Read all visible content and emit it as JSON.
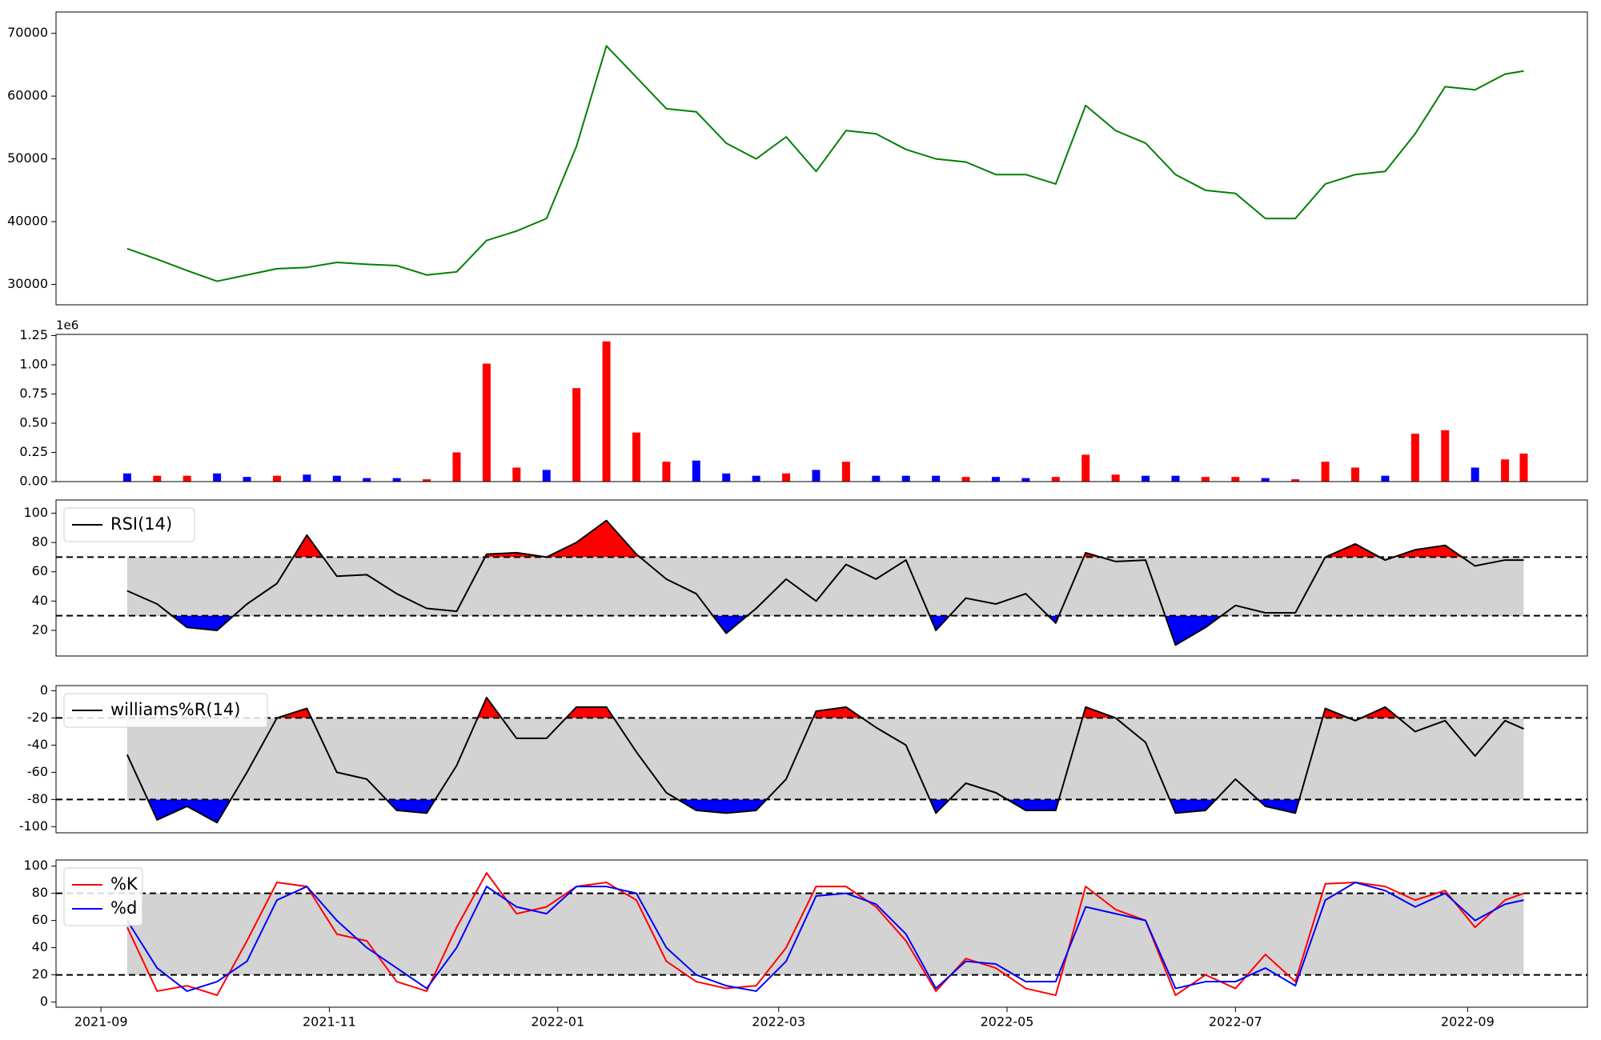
{
  "chart_data": [
    {
      "type": "line",
      "color": "green",
      "x": [
        "2021-09-08",
        "2021-09-16",
        "2021-09-24",
        "2021-10-02",
        "2021-10-10",
        "2021-10-18",
        "2021-10-26",
        "2021-11-03",
        "2021-11-11",
        "2021-11-19",
        "2021-11-27",
        "2021-12-05",
        "2021-12-13",
        "2021-12-21",
        "2021-12-29",
        "2022-01-06",
        "2022-01-14",
        "2022-01-22",
        "2022-01-30",
        "2022-02-07",
        "2022-02-15",
        "2022-02-23",
        "2022-03-03",
        "2022-03-11",
        "2022-03-19",
        "2022-03-27",
        "2022-04-04",
        "2022-04-12",
        "2022-04-20",
        "2022-04-28",
        "2022-05-06",
        "2022-05-14",
        "2022-05-22",
        "2022-05-30",
        "2022-06-07",
        "2022-06-15",
        "2022-06-23",
        "2022-07-01",
        "2022-07-09",
        "2022-07-17",
        "2022-07-25",
        "2022-08-02",
        "2022-08-10",
        "2022-08-18",
        "2022-08-26",
        "2022-09-03",
        "2022-09-11",
        "2022-09-16"
      ],
      "values": [
        35700,
        34000,
        32200,
        30500,
        31500,
        32500,
        32700,
        33500,
        33200,
        33000,
        31500,
        32000,
        37000,
        38500,
        40500,
        52000,
        68000,
        63000,
        58000,
        57500,
        52500,
        50000,
        53500,
        48000,
        54500,
        54000,
        51500,
        50000,
        49500,
        47500,
        47500,
        46000,
        58500,
        54500,
        52500,
        47500,
        45000,
        44500,
        40500,
        40500,
        46000,
        47500,
        48000,
        54000,
        61500,
        61000,
        63500,
        64000
      ],
      "xlim": [
        "2021-08-20",
        "2022-10-03"
      ],
      "ylim": [
        26750,
        73400
      ],
      "yticks": [
        30000,
        40000,
        50000,
        60000,
        70000
      ]
    },
    {
      "type": "bar",
      "offset_label": "1e6",
      "x": [
        "2021-09-08",
        "2021-09-16",
        "2021-09-24",
        "2021-10-02",
        "2021-10-10",
        "2021-10-18",
        "2021-10-26",
        "2021-11-03",
        "2021-11-11",
        "2021-11-19",
        "2021-11-27",
        "2021-12-05",
        "2021-12-13",
        "2021-12-21",
        "2021-12-29",
        "2022-01-06",
        "2022-01-14",
        "2022-01-22",
        "2022-01-30",
        "2022-02-07",
        "2022-02-15",
        "2022-02-23",
        "2022-03-03",
        "2022-03-11",
        "2022-03-19",
        "2022-03-27",
        "2022-04-04",
        "2022-04-12",
        "2022-04-20",
        "2022-04-28",
        "2022-05-06",
        "2022-05-14",
        "2022-05-22",
        "2022-05-30",
        "2022-06-07",
        "2022-06-15",
        "2022-06-23",
        "2022-07-01",
        "2022-07-09",
        "2022-07-17",
        "2022-07-25",
        "2022-08-02",
        "2022-08-10",
        "2022-08-18",
        "2022-08-26",
        "2022-09-03",
        "2022-09-11",
        "2022-09-16"
      ],
      "values": [
        0.07,
        0.05,
        0.05,
        0.07,
        0.04,
        0.05,
        0.06,
        0.05,
        0.03,
        0.03,
        0.02,
        0.25,
        1.01,
        0.12,
        0.1,
        0.8,
        1.2,
        0.42,
        0.17,
        0.18,
        0.07,
        0.05,
        0.07,
        0.1,
        0.17,
        0.05,
        0.05,
        0.05,
        0.04,
        0.04,
        0.03,
        0.04,
        0.23,
        0.06,
        0.05,
        0.05,
        0.04,
        0.04,
        0.03,
        0.02,
        0.17,
        0.12,
        0.05,
        0.41,
        0.44,
        0.12,
        0.19,
        0.24
      ],
      "colors": [
        "blue",
        "red",
        "red",
        "blue",
        "blue",
        "red",
        "blue",
        "blue",
        "blue",
        "blue",
        "red",
        "red",
        "red",
        "red",
        "blue",
        "red",
        "red",
        "red",
        "red",
        "blue",
        "blue",
        "blue",
        "red",
        "blue",
        "red",
        "blue",
        "blue",
        "blue",
        "red",
        "blue",
        "blue",
        "red",
        "red",
        "red",
        "blue",
        "blue",
        "red",
        "red",
        "blue",
        "red",
        "red",
        "red",
        "blue",
        "red",
        "red",
        "blue",
        "red",
        "red"
      ],
      "xlim": [
        "2021-08-20",
        "2022-10-03"
      ],
      "ylim": [
        0,
        1.26
      ],
      "yticks": [
        {
          "value": 0,
          "label": "0.00"
        },
        {
          "value": 0.25,
          "label": "0.25"
        },
        {
          "value": 0.5,
          "label": "0.50"
        },
        {
          "value": 0.75,
          "label": "0.75"
        },
        {
          "value": 1,
          "label": "1.00"
        },
        {
          "value": 1.25,
          "label": "1.25"
        }
      ]
    },
    {
      "type": "line",
      "legend": "upper left",
      "hlines": [
        30,
        70
      ],
      "band_color": "lightgray",
      "above_color": "red",
      "below_color": "blue",
      "x": [
        "2021-09-08",
        "2021-09-16",
        "2021-09-24",
        "2021-10-02",
        "2021-10-10",
        "2021-10-18",
        "2021-10-26",
        "2021-11-03",
        "2021-11-11",
        "2021-11-19",
        "2021-11-27",
        "2021-12-05",
        "2021-12-13",
        "2021-12-21",
        "2021-12-29",
        "2022-01-06",
        "2022-01-14",
        "2022-01-22",
        "2022-01-30",
        "2022-02-07",
        "2022-02-15",
        "2022-02-23",
        "2022-03-03",
        "2022-03-11",
        "2022-03-19",
        "2022-03-27",
        "2022-04-04",
        "2022-04-12",
        "2022-04-20",
        "2022-04-28",
        "2022-05-06",
        "2022-05-14",
        "2022-05-22",
        "2022-05-30",
        "2022-06-07",
        "2022-06-15",
        "2022-06-23",
        "2022-07-01",
        "2022-07-09",
        "2022-07-17",
        "2022-07-25",
        "2022-08-02",
        "2022-08-10",
        "2022-08-18",
        "2022-08-26",
        "2022-09-03",
        "2022-09-11",
        "2022-09-16"
      ],
      "series": [
        {
          "name": "RSI(14)",
          "color": "black",
          "values": [
            47,
            38,
            22,
            20,
            38,
            52,
            85,
            57,
            58,
            45,
            35,
            33,
            72,
            73,
            70,
            80,
            95,
            72,
            55,
            45,
            18,
            35,
            55,
            40,
            65,
            55,
            68,
            20,
            42,
            38,
            45,
            25,
            73,
            67,
            68,
            10,
            22,
            37,
            32,
            32,
            70,
            79,
            68,
            75,
            78,
            64,
            68,
            68
          ]
        }
      ],
      "xlim": [
        "2021-08-20",
        "2022-10-03"
      ],
      "ylim": [
        2.5,
        109
      ],
      "yticks": [
        20,
        40,
        60,
        80,
        100
      ]
    },
    {
      "type": "line",
      "legend": "upper left",
      "hlines": [
        -80,
        -20
      ],
      "band_color": "lightgray",
      "above_color": "red",
      "below_color": "blue",
      "x": [
        "2021-09-08",
        "2021-09-16",
        "2021-09-24",
        "2021-10-02",
        "2021-10-10",
        "2021-10-18",
        "2021-10-26",
        "2021-11-03",
        "2021-11-11",
        "2021-11-19",
        "2021-11-27",
        "2021-12-05",
        "2021-12-13",
        "2021-12-21",
        "2021-12-29",
        "2022-01-06",
        "2022-01-14",
        "2022-01-22",
        "2022-01-30",
        "2022-02-07",
        "2022-02-15",
        "2022-02-23",
        "2022-03-03",
        "2022-03-11",
        "2022-03-19",
        "2022-03-27",
        "2022-04-04",
        "2022-04-12",
        "2022-04-20",
        "2022-04-28",
        "2022-05-06",
        "2022-05-14",
        "2022-05-22",
        "2022-05-30",
        "2022-06-07",
        "2022-06-15",
        "2022-06-23",
        "2022-07-01",
        "2022-07-09",
        "2022-07-17",
        "2022-07-25",
        "2022-08-02",
        "2022-08-10",
        "2022-08-18",
        "2022-08-26",
        "2022-09-03",
        "2022-09-11",
        "2022-09-16"
      ],
      "series": [
        {
          "name": "williams%R(14)",
          "color": "black",
          "values": [
            -47,
            -95,
            -85,
            -97,
            -60,
            -20,
            -13,
            -60,
            -65,
            -88,
            -90,
            -55,
            -5,
            -35,
            -35,
            -12,
            -12,
            -45,
            -75,
            -88,
            -90,
            -88,
            -65,
            -15,
            -12,
            -27,
            -40,
            -90,
            -68,
            -75,
            -88,
            -88,
            -12,
            -20,
            -38,
            -90,
            -88,
            -65,
            -85,
            -90,
            -13,
            -22,
            -12,
            -30,
            -22,
            -48,
            -22,
            -28
          ]
        }
      ],
      "xlim": [
        "2021-08-20",
        "2022-10-03"
      ],
      "ylim": [
        -104.5,
        3.8
      ],
      "yticks": [
        -100,
        -80,
        -60,
        -40,
        -20,
        0
      ]
    },
    {
      "type": "line",
      "legend": "upper left",
      "hlines": [
        20,
        80
      ],
      "band_color": "lightgray",
      "x": [
        "2021-09-08",
        "2021-09-16",
        "2021-09-24",
        "2021-10-02",
        "2021-10-10",
        "2021-10-18",
        "2021-10-26",
        "2021-11-03",
        "2021-11-11",
        "2021-11-19",
        "2021-11-27",
        "2021-12-05",
        "2021-12-13",
        "2021-12-21",
        "2021-12-29",
        "2022-01-06",
        "2022-01-14",
        "2022-01-22",
        "2022-01-30",
        "2022-02-07",
        "2022-02-15",
        "2022-02-23",
        "2022-03-03",
        "2022-03-11",
        "2022-03-19",
        "2022-03-27",
        "2022-04-04",
        "2022-04-12",
        "2022-04-20",
        "2022-04-28",
        "2022-05-06",
        "2022-05-14",
        "2022-05-22",
        "2022-05-30",
        "2022-06-07",
        "2022-06-15",
        "2022-06-23",
        "2022-07-01",
        "2022-07-09",
        "2022-07-17",
        "2022-07-25",
        "2022-08-02",
        "2022-08-10",
        "2022-08-18",
        "2022-08-26",
        "2022-09-03",
        "2022-09-11",
        "2022-09-16"
      ],
      "series": [
        {
          "name": "%K",
          "color": "red",
          "values": [
            55,
            8,
            12,
            5,
            45,
            88,
            85,
            50,
            45,
            15,
            8,
            55,
            95,
            65,
            70,
            85,
            88,
            75,
            30,
            15,
            10,
            12,
            40,
            85,
            85,
            70,
            45,
            8,
            32,
            25,
            10,
            5,
            85,
            68,
            60,
            5,
            20,
            10,
            35,
            15,
            87,
            88,
            85,
            75,
            82,
            55,
            75,
            80
          ]
        },
        {
          "name": "%d",
          "color": "blue",
          "values": [
            60,
            25,
            8,
            15,
            30,
            75,
            85,
            60,
            40,
            25,
            10,
            40,
            85,
            70,
            65,
            85,
            85,
            80,
            40,
            20,
            12,
            8,
            30,
            78,
            80,
            72,
            50,
            10,
            30,
            28,
            15,
            15,
            70,
            65,
            60,
            10,
            15,
            15,
            25,
            12,
            75,
            88,
            82,
            70,
            80,
            60,
            72,
            75
          ]
        }
      ],
      "xlim": [
        "2021-08-20",
        "2022-10-03"
      ],
      "ylim": [
        -3.8,
        104.5
      ],
      "yticks": [
        0,
        20,
        40,
        60,
        80,
        100
      ],
      "xticks": [
        {
          "value": "2021-09-01",
          "label": "2021-09"
        },
        {
          "value": "2021-11-01",
          "label": "2021-11"
        },
        {
          "value": "2022-01-01",
          "label": "2022-01"
        },
        {
          "value": "2022-03-01",
          "label": "2022-03"
        },
        {
          "value": "2022-05-01",
          "label": "2022-05"
        },
        {
          "value": "2022-07-01",
          "label": "2022-07"
        },
        {
          "value": "2022-09-01",
          "label": "2022-09"
        }
      ]
    }
  ]
}
